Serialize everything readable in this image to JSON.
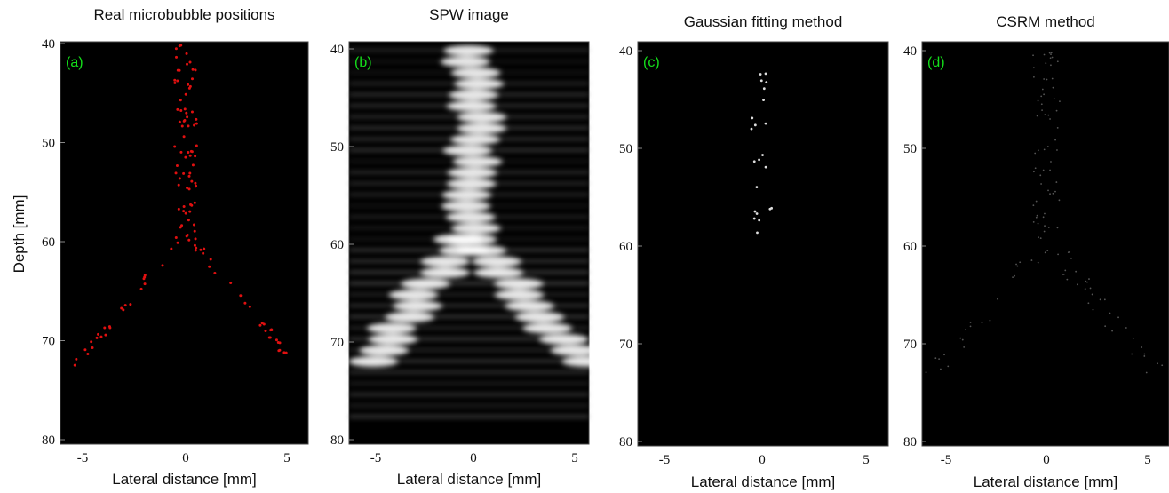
{
  "panels": [
    {
      "title": "Real microbubble positions",
      "label": "(a)",
      "ylabel": "Depth [mm]",
      "xlabel": "Lateral distance [mm]",
      "yticks": [
        "40",
        "50",
        "60",
        "70",
        "80"
      ],
      "xticks": [
        "-5",
        "0",
        "5"
      ]
    },
    {
      "title": "SPW image",
      "label": "(b)",
      "xlabel": "Lateral distance [mm]",
      "yticks": [
        "40",
        "50",
        "60",
        "70",
        "80"
      ],
      "xticks": [
        "-5",
        "0",
        "5"
      ]
    },
    {
      "title": "Gaussian fitting method",
      "label": "(c)",
      "xlabel": "Lateral distance [mm]",
      "yticks": [
        "40",
        "50",
        "60",
        "70",
        "80"
      ],
      "xticks": [
        "-5",
        "0",
        "5"
      ]
    },
    {
      "title": "CSRM method",
      "label": "(d)",
      "xlabel": "Lateral distance [mm]",
      "yticks": [
        "40",
        "50",
        "60",
        "70",
        "80"
      ],
      "xticks": [
        "-5",
        "0",
        "5"
      ]
    }
  ]
}
